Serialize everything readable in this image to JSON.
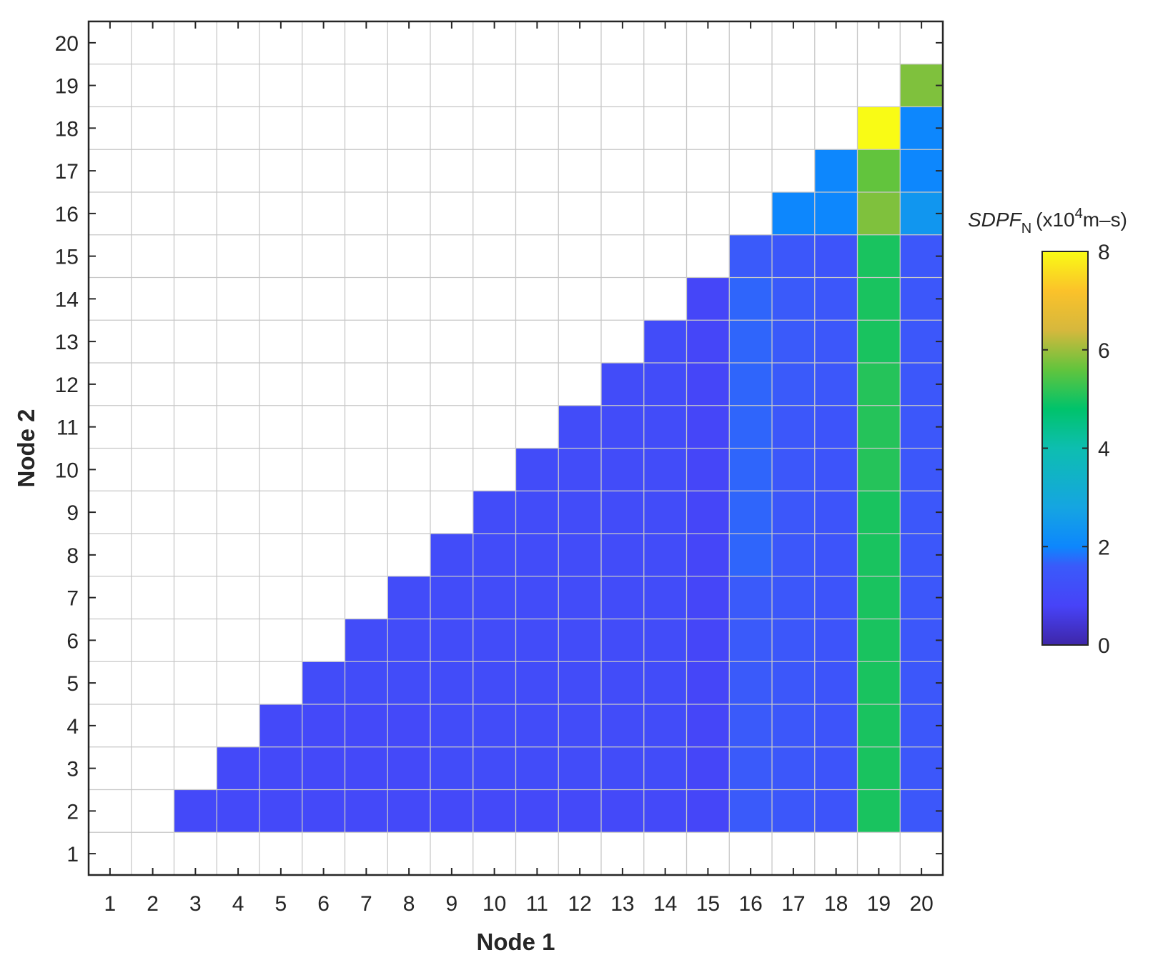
{
  "chart_data": {
    "type": "heatmap",
    "xlabel": "Node 1",
    "ylabel": "Node 2",
    "x_ticks": [
      1,
      2,
      3,
      4,
      5,
      6,
      7,
      8,
      9,
      10,
      11,
      12,
      13,
      14,
      15,
      16,
      17,
      18,
      19,
      20
    ],
    "y_ticks": [
      1,
      2,
      3,
      4,
      5,
      6,
      7,
      8,
      9,
      10,
      11,
      12,
      13,
      14,
      15,
      16,
      17,
      18,
      19,
      20
    ],
    "xlim": [
      1,
      20
    ],
    "ylim": [
      1,
      20
    ],
    "grid": true,
    "colorbar": {
      "label_italic": "SDPF",
      "label_sub": "N",
      "label_units_pre": "(x10",
      "label_sup": "4",
      "label_units_post": "m–s)",
      "range": [
        0,
        8
      ],
      "ticks": [
        "0",
        "2",
        "4",
        "6",
        "8"
      ],
      "tick_values": [
        0,
        2,
        4,
        6,
        8
      ],
      "colormap": "parula"
    },
    "cells": [
      {
        "node1": 3,
        "values": [
          1.0
        ]
      },
      {
        "node1": 4,
        "values": [
          1.0,
          1.0
        ]
      },
      {
        "node1": 5,
        "values": [
          1.0,
          1.0,
          1.0
        ]
      },
      {
        "node1": 6,
        "values": [
          1.0,
          1.0,
          1.0,
          1.1
        ]
      },
      {
        "node1": 7,
        "values": [
          1.0,
          1.0,
          1.0,
          1.1,
          1.1
        ]
      },
      {
        "node1": 8,
        "values": [
          1.0,
          1.0,
          1.0,
          1.1,
          1.1,
          1.1
        ]
      },
      {
        "node1": 9,
        "values": [
          1.0,
          1.1,
          1.1,
          1.1,
          1.1,
          1.1,
          1.1
        ]
      },
      {
        "node1": 10,
        "values": [
          1.0,
          1.1,
          1.1,
          1.1,
          1.1,
          1.1,
          1.1,
          1.1
        ]
      },
      {
        "node1": 11,
        "values": [
          1.0,
          1.1,
          1.1,
          1.1,
          1.1,
          1.1,
          1.1,
          1.1,
          1.1
        ]
      },
      {
        "node1": 12,
        "values": [
          1.0,
          1.1,
          1.1,
          1.1,
          1.1,
          1.1,
          1.1,
          1.1,
          1.1,
          1.1
        ]
      },
      {
        "node1": 13,
        "values": [
          1.0,
          1.1,
          1.1,
          1.1,
          1.1,
          1.1,
          1.1,
          1.1,
          1.1,
          1.1,
          1.1
        ]
      },
      {
        "node1": 14,
        "values": [
          1.0,
          1.1,
          1.1,
          1.1,
          1.1,
          1.1,
          1.1,
          1.1,
          1.1,
          1.1,
          1.1,
          1.1
        ]
      },
      {
        "node1": 15,
        "values": [
          0.9,
          0.9,
          0.9,
          0.9,
          0.9,
          0.9,
          0.9,
          0.9,
          0.9,
          0.9,
          0.9,
          0.9,
          0.9
        ]
      },
      {
        "node1": 16,
        "values": [
          1.6,
          1.6,
          1.6,
          1.6,
          1.6,
          1.6,
          1.7,
          1.7,
          1.7,
          1.7,
          1.7,
          1.7,
          1.7,
          1.6
        ]
      },
      {
        "node1": 17,
        "values": [
          1.5,
          1.5,
          1.5,
          1.5,
          1.5,
          1.5,
          1.5,
          1.5,
          1.5,
          1.5,
          1.6,
          1.6,
          1.6,
          1.5,
          2.0
        ]
      },
      {
        "node1": 18,
        "values": [
          1.4,
          1.4,
          1.4,
          1.4,
          1.4,
          1.4,
          1.4,
          1.4,
          1.4,
          1.4,
          1.5,
          1.5,
          1.5,
          1.4,
          2.0,
          2.0
        ]
      },
      {
        "node1": 19,
        "values": [
          5.0,
          5.0,
          5.0,
          5.0,
          5.0,
          5.0,
          5.0,
          5.0,
          5.1,
          5.1,
          5.1,
          5.0,
          5.0,
          5.0,
          5.8,
          5.6,
          8.0
        ]
      },
      {
        "node1": 20,
        "values": [
          1.5,
          1.5,
          1.5,
          1.5,
          1.5,
          1.5,
          1.5,
          1.5,
          1.5,
          1.5,
          1.5,
          1.5,
          1.5,
          1.5,
          2.4,
          2.0,
          2.0,
          5.8
        ]
      }
    ]
  }
}
